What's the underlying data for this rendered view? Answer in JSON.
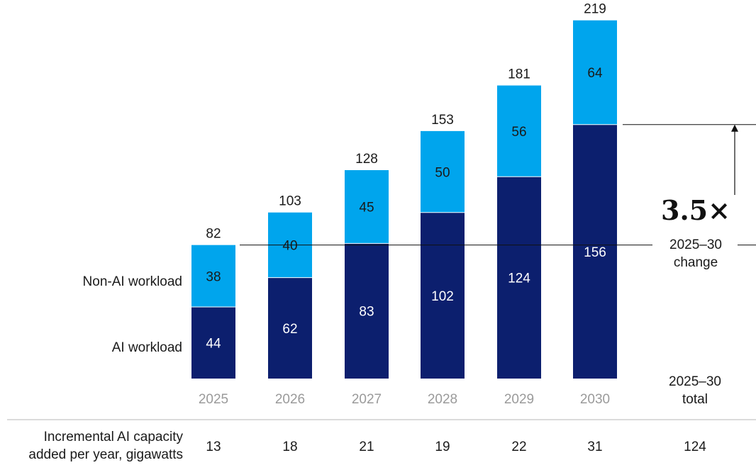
{
  "chart_data": {
    "type": "bar",
    "stacked": true,
    "categories": [
      "2025",
      "2026",
      "2027",
      "2028",
      "2029",
      "2030"
    ],
    "series": [
      {
        "name": "AI workload",
        "values": [
          44,
          62,
          83,
          102,
          124,
          156
        ],
        "color": "#0c1f6e"
      },
      {
        "name": "Non-AI workload",
        "values": [
          38,
          40,
          45,
          50,
          56,
          64
        ],
        "color": "#00a5ed"
      }
    ],
    "totals": [
      82,
      103,
      128,
      153,
      181,
      219
    ],
    "ylim": [
      0,
      219
    ],
    "annotation": {
      "multiplier": "3.5×",
      "line1": "2025–30",
      "line2": "change"
    },
    "total_column": {
      "line1": "2025–30",
      "line2": "total"
    }
  },
  "table_row": {
    "label_line1": "Incremental AI capacity",
    "label_line2": "added per year, gigawatts",
    "values": [
      "13",
      "18",
      "21",
      "19",
      "22",
      "31"
    ],
    "total": "124"
  }
}
